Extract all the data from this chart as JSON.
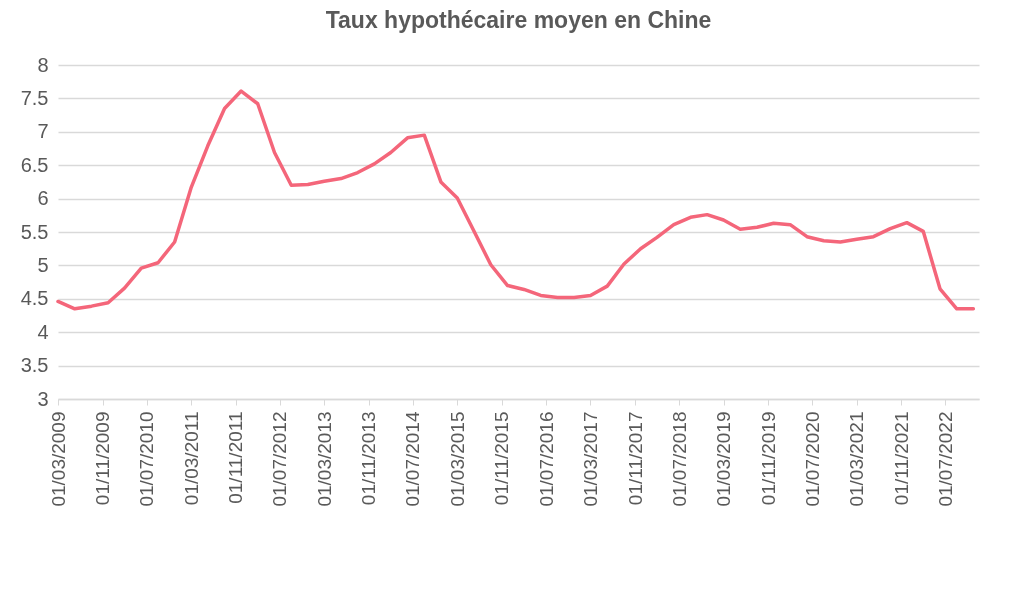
{
  "chart_data": {
    "type": "line",
    "title": "Taux hypothécaire moyen en Chine",
    "x": [
      "2009-03-01",
      "2009-06-01",
      "2009-09-01",
      "2009-12-01",
      "2010-03-01",
      "2010-06-01",
      "2010-09-01",
      "2010-12-01",
      "2011-03-01",
      "2011-06-01",
      "2011-09-01",
      "2011-12-01",
      "2012-03-01",
      "2012-06-01",
      "2012-09-01",
      "2012-12-01",
      "2013-03-01",
      "2013-06-01",
      "2013-09-01",
      "2013-12-01",
      "2014-03-01",
      "2014-06-01",
      "2014-09-01",
      "2014-12-01",
      "2015-03-01",
      "2015-06-01",
      "2015-09-01",
      "2015-12-01",
      "2016-03-01",
      "2016-06-01",
      "2016-09-01",
      "2016-12-01",
      "2017-03-01",
      "2017-06-01",
      "2017-09-01",
      "2017-12-01",
      "2018-03-01",
      "2018-06-01",
      "2018-09-01",
      "2018-12-01",
      "2019-03-01",
      "2019-06-01",
      "2019-09-01",
      "2019-12-01",
      "2020-03-01",
      "2020-06-01",
      "2020-09-01",
      "2020-12-01",
      "2021-03-01",
      "2021-06-01",
      "2021-09-01",
      "2021-12-01",
      "2022-03-01",
      "2022-06-01",
      "2022-09-01",
      "2022-12-01"
    ],
    "series": [
      {
        "color": "#f4667a",
        "values": [
          4.46,
          4.35,
          4.39,
          4.44,
          4.66,
          4.96,
          5.04,
          5.35,
          6.16,
          6.79,
          7.35,
          7.61,
          7.42,
          6.69,
          6.2,
          6.21,
          6.26,
          6.3,
          6.39,
          6.52,
          6.69,
          6.91,
          6.95,
          6.25,
          6.01,
          5.51,
          5.01,
          4.7,
          4.64,
          4.55,
          4.52,
          4.52,
          4.55,
          4.69,
          5.02,
          5.25,
          5.42,
          5.61,
          5.72,
          5.76,
          5.68,
          5.54,
          5.57,
          5.63,
          5.61,
          5.43,
          5.37,
          5.35,
          5.39,
          5.43,
          5.55,
          5.64,
          5.51,
          4.65,
          4.35,
          4.35
        ]
      }
    ],
    "xlim": [
      "2009-03-01",
      "2023-01-01"
    ],
    "xticks": [
      {
        "value": "2009-03-01",
        "label": "01/03/2009"
      },
      {
        "value": "2009-11-01",
        "label": "01/11/2009"
      },
      {
        "value": "2010-07-01",
        "label": "01/07/2010"
      },
      {
        "value": "2011-03-01",
        "label": "01/03/2011"
      },
      {
        "value": "2011-11-01",
        "label": "01/11/2011"
      },
      {
        "value": "2012-07-01",
        "label": "01/07/2012"
      },
      {
        "value": "2013-03-01",
        "label": "01/03/2013"
      },
      {
        "value": "2013-11-01",
        "label": "01/11/2013"
      },
      {
        "value": "2014-07-01",
        "label": "01/07/2014"
      },
      {
        "value": "2015-03-01",
        "label": "01/03/2015"
      },
      {
        "value": "2015-11-01",
        "label": "01/11/2015"
      },
      {
        "value": "2016-07-01",
        "label": "01/07/2016"
      },
      {
        "value": "2017-03-01",
        "label": "01/03/2017"
      },
      {
        "value": "2017-11-01",
        "label": "01/11/2017"
      },
      {
        "value": "2018-07-01",
        "label": "01/07/2018"
      },
      {
        "value": "2019-03-01",
        "label": "01/03/2019"
      },
      {
        "value": "2019-11-01",
        "label": "01/11/2019"
      },
      {
        "value": "2020-07-01",
        "label": "01/07/2020"
      },
      {
        "value": "2021-03-01",
        "label": "01/03/2021"
      },
      {
        "value": "2021-11-01",
        "label": "01/11/2021"
      },
      {
        "value": "2022-07-01",
        "label": "01/07/2022"
      }
    ],
    "ylim": [
      3,
      8
    ],
    "yticks": [
      3,
      3.5,
      4,
      4.5,
      5,
      5.5,
      6,
      6.5,
      7,
      7.5,
      8
    ],
    "grid": "y",
    "legend": false
  }
}
